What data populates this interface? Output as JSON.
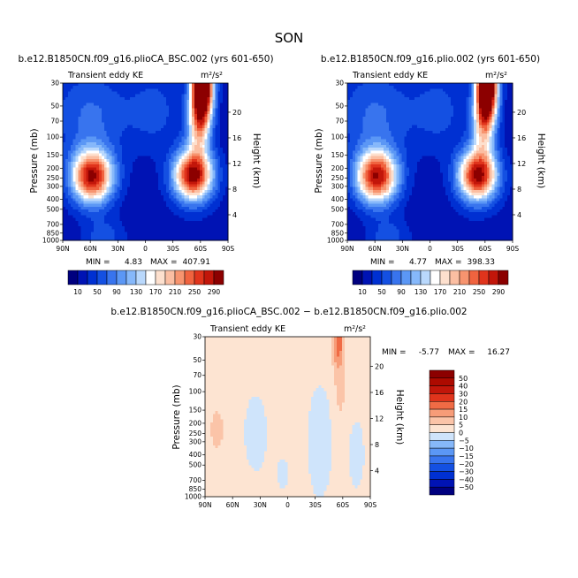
{
  "figure": {
    "title": "SON"
  },
  "chart_data": [
    {
      "type": "heatmap",
      "title": "b.e12.B1850CN.f09_g16.plioCA_BSC.002 (yrs 601-650)",
      "subtitle": "Transient eddy KE",
      "units": "m²/s²",
      "ylabel": "Pressure (mb)",
      "ylabel_right": "Height (km)",
      "x_ticks": [
        "90N",
        "60N",
        "30N",
        "0",
        "30S",
        "60S",
        "90S"
      ],
      "y_ticks": [
        30,
        50,
        70,
        100,
        150,
        200,
        250,
        300,
        400,
        500,
        700,
        850,
        1000
      ],
      "y_scale": "log",
      "ylim": [
        1000,
        30
      ],
      "height_ticks": [
        4,
        8,
        12,
        16,
        20
      ],
      "min_label": "MIN =",
      "min_value": "4.83",
      "max_label": "MAX =",
      "max_value": "407.91",
      "colorbar_orientation": "horizontal",
      "colorbar_labels": [
        "10",
        "50",
        "90",
        "130",
        "170",
        "210",
        "250",
        "290"
      ],
      "colorbar_levels": [
        10,
        30,
        50,
        70,
        90,
        110,
        130,
        150,
        170,
        190,
        210,
        230,
        250,
        270,
        290
      ],
      "colors": [
        "#00007f",
        "#0013b4",
        "#0030d2",
        "#1450e2",
        "#3874ee",
        "#5b97f5",
        "#86b8fa",
        "#b9d8fc",
        "#ffffff",
        "#fde0ce",
        "#fbbea2",
        "#f7946f",
        "#f0633f",
        "#e0341c",
        "#c2160a",
        "#8c0000"
      ],
      "field": [
        {
          "lat": 58,
          "p": 240,
          "amp": 275,
          "wlat": 16,
          "wp": 0.42
        },
        {
          "lat": -52,
          "p": 235,
          "amp": 285,
          "wlat": 15,
          "wp": 0.4
        },
        {
          "lat": -62,
          "p": 30,
          "amp": 410,
          "wlat": 8,
          "wp": 0.55
        },
        {
          "lat": -58,
          "p": 75,
          "amp": 150,
          "wlat": 9,
          "wp": 0.5
        },
        {
          "lat": 60,
          "p": 60,
          "amp": 55,
          "wlat": 30,
          "wp": 0.7
        },
        {
          "lat": -10,
          "p": 55,
          "amp": 40,
          "wlat": 20,
          "wp": 0.6
        },
        {
          "lat": 45,
          "p": 950,
          "amp": 45,
          "wlat": 15,
          "wp": 0.3
        }
      ],
      "field_base": 18
    },
    {
      "type": "heatmap",
      "title": "b.e12.B1850CN.f09_g16.plio.002 (yrs 601-650)",
      "subtitle": "Transient eddy KE",
      "units": "m²/s²",
      "ylabel": "Pressure (mb)",
      "ylabel_right": "Height (km)",
      "x_ticks": [
        "90N",
        "60N",
        "30N",
        "0",
        "30S",
        "60S",
        "90S"
      ],
      "y_ticks": [
        30,
        50,
        70,
        100,
        150,
        200,
        250,
        300,
        400,
        500,
        700,
        850,
        1000
      ],
      "y_scale": "log",
      "ylim": [
        1000,
        30
      ],
      "height_ticks": [
        4,
        8,
        12,
        16,
        20
      ],
      "min_label": "MIN =",
      "min_value": "4.77",
      "max_label": "MAX =",
      "max_value": "398.33",
      "colorbar_orientation": "horizontal",
      "colorbar_labels": [
        "10",
        "50",
        "90",
        "130",
        "170",
        "210",
        "250",
        "290"
      ],
      "colorbar_levels": [
        10,
        30,
        50,
        70,
        90,
        110,
        130,
        150,
        170,
        190,
        210,
        230,
        250,
        270,
        290
      ],
      "colors": [
        "#00007f",
        "#0013b4",
        "#0030d2",
        "#1450e2",
        "#3874ee",
        "#5b97f5",
        "#86b8fa",
        "#b9d8fc",
        "#ffffff",
        "#fde0ce",
        "#fbbea2",
        "#f7946f",
        "#f0633f",
        "#e0341c",
        "#c2160a",
        "#8c0000"
      ],
      "field": [
        {
          "lat": 58,
          "p": 240,
          "amp": 270,
          "wlat": 16,
          "wp": 0.42
        },
        {
          "lat": -52,
          "p": 235,
          "amp": 280,
          "wlat": 15,
          "wp": 0.4
        },
        {
          "lat": -62,
          "p": 30,
          "amp": 400,
          "wlat": 8,
          "wp": 0.55
        },
        {
          "lat": -58,
          "p": 75,
          "amp": 145,
          "wlat": 9,
          "wp": 0.5
        },
        {
          "lat": 60,
          "p": 60,
          "amp": 55,
          "wlat": 30,
          "wp": 0.7
        },
        {
          "lat": -10,
          "p": 55,
          "amp": 40,
          "wlat": 20,
          "wp": 0.6
        },
        {
          "lat": 45,
          "p": 950,
          "amp": 45,
          "wlat": 15,
          "wp": 0.3
        }
      ],
      "field_base": 18
    },
    {
      "type": "heatmap",
      "title": "b.e12.B1850CN.f09_g16.plioCA_BSC.002 − b.e12.B1850CN.f09_g16.plio.002",
      "subtitle": "Transient eddy KE",
      "units": "m²/s²",
      "ylabel": "Pressure (mb)",
      "ylabel_right": "Height (km)",
      "x_ticks": [
        "90N",
        "60N",
        "30N",
        "0",
        "30S",
        "60S",
        "90S"
      ],
      "y_ticks": [
        30,
        50,
        70,
        100,
        150,
        200,
        250,
        300,
        400,
        500,
        700,
        850,
        1000
      ],
      "y_scale": "log",
      "ylim": [
        1000,
        30
      ],
      "height_ticks": [
        4,
        8,
        12,
        16,
        20
      ],
      "min_label": "MIN =",
      "min_value": "-5.77",
      "max_label": "MAX =",
      "max_value": "16.27",
      "colorbar_orientation": "vertical",
      "colorbar_labels": [
        "50",
        "40",
        "30",
        "20",
        "15",
        "10",
        "5",
        "0",
        "−5",
        "−10",
        "−15",
        "−20",
        "−30",
        "−40",
        "−50"
      ],
      "colorbar_levels": [
        -50,
        -40,
        -30,
        -20,
        -15,
        -10,
        -5,
        0,
        5,
        10,
        15,
        20,
        30,
        40,
        50
      ],
      "colors": [
        "#00007f",
        "#0013b4",
        "#0030d2",
        "#1450e2",
        "#3874ee",
        "#5b97f5",
        "#86b8fa",
        "#cfe4fb",
        "#fde4d2",
        "#fbc4a8",
        "#f79c78",
        "#f06b45",
        "#e0341c",
        "#c2160a",
        "#ad0a00",
        "#8c0000"
      ],
      "field": [
        {
          "lat": 77,
          "p": 230,
          "amp": 7,
          "wlat": 5,
          "wp": 0.28
        },
        {
          "lat": -55,
          "p": 33,
          "amp": 16,
          "wlat": 4,
          "wp": 0.42
        },
        {
          "lat": -57,
          "p": 100,
          "amp": 4,
          "wlat": 5,
          "wp": 0.6
        },
        {
          "lat": 35,
          "p": 250,
          "amp": -5.5,
          "wlat": 9,
          "wp": 0.6
        },
        {
          "lat": -35,
          "p": 300,
          "amp": -5.5,
          "wlat": 10,
          "wp": 0.9
        },
        {
          "lat": -75,
          "p": 400,
          "amp": -4.5,
          "wlat": 7,
          "wp": 0.6
        },
        {
          "lat": 5,
          "p": 600,
          "amp": -3,
          "wlat": 8,
          "wp": 0.4
        }
      ],
      "field_base": 2.2
    }
  ]
}
